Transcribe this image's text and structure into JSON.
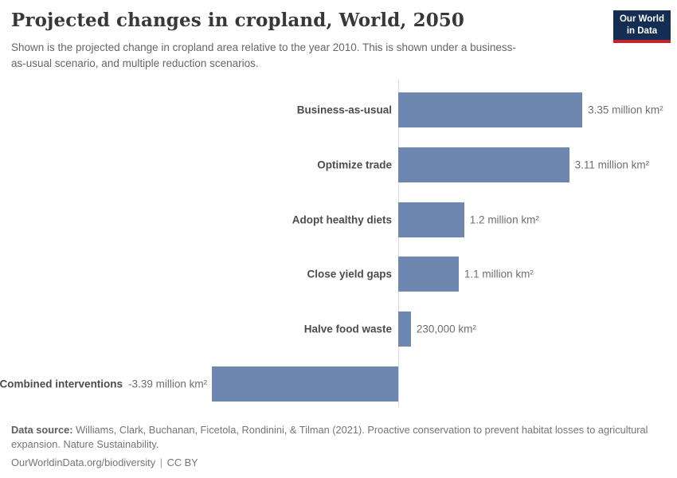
{
  "header": {
    "title": "Projected changes in cropland, World, 2050",
    "subtitle": "Shown is the projected change in cropland area relative to the year 2010. This is shown under a business-as-usual scenario, and multiple reduction scenarios."
  },
  "logo": {
    "line1": "Our World",
    "line2": "in Data",
    "bg_color": "#132e52",
    "accent_color": "#c0262c"
  },
  "chart_data": {
    "type": "bar",
    "orientation": "horizontal",
    "title": "Projected changes in cropland, World, 2050",
    "xlabel": "",
    "ylabel": "",
    "unit": "million km²",
    "baseline": 0,
    "xlim": [
      -3.39,
      3.35
    ],
    "grid": false,
    "legend": "none",
    "bar_color": "#6e87b0",
    "axis_line_color": "#d9d9d9",
    "categories": [
      "Business-as-usual",
      "Optimize trade",
      "Adopt healthy diets",
      "Close yield gaps",
      "Halve food waste",
      "Combined interventions"
    ],
    "values": [
      3.35,
      3.11,
      1.2,
      1.1,
      0.23,
      -3.39
    ],
    "value_labels": [
      "3.35 million km²",
      "3.11 million km²",
      "1.2 million km²",
      "1.1 million km²",
      "230,000 km²",
      "-3.39 million km²"
    ]
  },
  "footer": {
    "source_label": "Data source:",
    "source_text": "Williams, Clark, Buchanan, Ficetola, Rondinini, & Tilman (2021). Proactive conservation to prevent habitat losses to agricultural expansion. Nature Sustainability.",
    "link": "OurWorldinData.org/biodiversity",
    "separator": "|",
    "license": "CC BY"
  }
}
